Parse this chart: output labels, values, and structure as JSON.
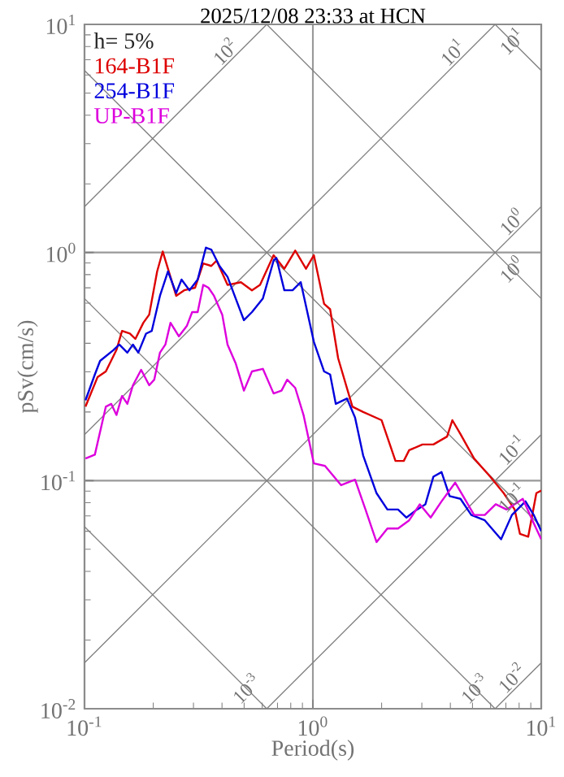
{
  "chart_data": {
    "type": "line",
    "title": "2025/12/08 23:33 at HCN",
    "xlabel": "Period(s)",
    "ylabel": "pSv(cm/s)",
    "log": "xy",
    "grid": true,
    "legend": "top left",
    "xlim": [
      0.1,
      10
    ],
    "ylim": [
      0.01,
      10
    ],
    "xticks": [
      {
        "value": 0.1,
        "label": "10$^{-1}$"
      },
      {
        "value": 1,
        "label": "10$^{0}$"
      },
      {
        "value": 10,
        "label": "10$^{1}$"
      }
    ],
    "yticks": [
      {
        "value": 0.01,
        "label": "10$^{-2}$"
      },
      {
        "value": 0.1,
        "label": "10$^{-1}$"
      },
      {
        "value": 1,
        "label": "10$^{0}$"
      },
      {
        "value": 10,
        "label": "10$^{1}$"
      }
    ],
    "annotations": [
      "h= 5%",
      {
        "text": "10$^{2}$",
        "x": 0.445,
        "y": 7.08
      },
      {
        "text": "10$^{1}$",
        "x": 4.41,
        "y": 7.02
      },
      {
        "text": "10$^{1}$",
        "x": 8,
        "y": 7.85
      },
      {
        "text": "10$^{0}$",
        "x": 8,
        "y": 1.27
      },
      {
        "text": "10$^{0}$",
        "x": 8,
        "y": 0.785
      },
      {
        "text": "10$^{-1}$",
        "x": 8,
        "y": 0.127
      },
      {
        "text": "10$^{-1}$",
        "x": 8,
        "y": 0.0785
      },
      {
        "text": "10$^{-2}$",
        "x": 8,
        "y": 0.0127
      },
      {
        "text": "10$^{-3}$",
        "x": 5.5,
        "y": 0.0114
      },
      {
        "text": "10$^{-3}$",
        "x": 0.55,
        "y": 0.0114
      }
    ],
    "series": [
      {
        "color": "#808080",
        "x": [
          0.1,
          0.628
        ],
        "values": [
          1.59,
          10
        ]
      },
      {
        "color": "#808080",
        "x": [
          0.1,
          6.28
        ],
        "values": [
          0.159,
          10
        ]
      },
      {
        "color": "#808080",
        "x": [
          0.1,
          10
        ],
        "values": [
          0.0159,
          1.59
        ]
      },
      {
        "color": "#808080",
        "x": [
          0.628,
          10
        ],
        "values": [
          0.01,
          0.159
        ]
      },
      {
        "color": "#808080",
        "x": [
          6.28,
          10
        ],
        "values": [
          0.01,
          0.0159
        ]
      },
      {
        "color": "#808080",
        "x": [
          6.28,
          10
        ],
        "values": [
          10,
          6.28
        ]
      },
      {
        "color": "#808080",
        "x": [
          0.628,
          10
        ],
        "values": [
          10,
          0.628
        ]
      },
      {
        "color": "#808080",
        "x": [
          0.1,
          10
        ],
        "values": [
          6.28,
          0.0628
        ]
      },
      {
        "color": "#808080",
        "x": [
          0.1,
          6.28
        ],
        "values": [
          0.628,
          0.01
        ]
      },
      {
        "color": "#808080",
        "x": [
          0.1,
          0.628
        ],
        "values": [
          0.0628,
          0.01
        ]
      },
      {
        "name": "164-B1F",
        "color": "#dd0000",
        "x": [
          0.101,
          0.114,
          0.124,
          0.138,
          0.146,
          0.158,
          0.167,
          0.181,
          0.192,
          0.208,
          0.22,
          0.232,
          0.252,
          0.273,
          0.305,
          0.331,
          0.359,
          0.379,
          0.423,
          0.484,
          0.541,
          0.587,
          0.673,
          0.75,
          0.837,
          0.933,
          1.01,
          1.12,
          1.19,
          1.29,
          1.49,
          1.66,
          2.0,
          2.3,
          2.5,
          2.64,
          3.02,
          3.37,
          3.87,
          4.08,
          4.43,
          5.08,
          5.98,
          6.85,
          7.65,
          8.07,
          8.77,
          9.52,
          10
        ],
        "values": [
          0.211,
          0.284,
          0.301,
          0.374,
          0.453,
          0.441,
          0.418,
          0.492,
          0.534,
          0.826,
          1.01,
          0.849,
          0.646,
          0.683,
          0.701,
          0.896,
          0.873,
          0.921,
          0.721,
          0.741,
          0.683,
          0.721,
          0.973,
          0.849,
          1.02,
          0.849,
          0.973,
          0.595,
          0.564,
          0.344,
          0.211,
          0.2,
          0.184,
          0.122,
          0.122,
          0.136,
          0.144,
          0.144,
          0.156,
          0.184,
          0.16,
          0.125,
          0.104,
          0.0881,
          0.0747,
          0.0584,
          0.0568,
          0.0881,
          0.0904
        ]
      },
      {
        "name": "254-B1F",
        "color": "#0000dd",
        "x": [
          0.101,
          0.111,
          0.117,
          0.134,
          0.142,
          0.154,
          0.163,
          0.172,
          0.186,
          0.197,
          0.214,
          0.232,
          0.252,
          0.266,
          0.288,
          0.313,
          0.34,
          0.359,
          0.39,
          0.423,
          0.459,
          0.499,
          0.541,
          0.604,
          0.673,
          0.692,
          0.75,
          0.815,
          0.885,
          1.01,
          1.12,
          1.19,
          1.26,
          1.41,
          1.53,
          1.66,
          1.9,
          2.12,
          2.36,
          2.57,
          2.86,
          3.11,
          3.37,
          3.66,
          3.97,
          4.43,
          4.94,
          5.66,
          6.67,
          7.44,
          8.53,
          9.27,
          10
        ],
        "values": [
          0.225,
          0.292,
          0.335,
          0.374,
          0.395,
          0.364,
          0.395,
          0.364,
          0.441,
          0.453,
          0.646,
          0.826,
          0.664,
          0.761,
          0.683,
          0.761,
          1.05,
          1.03,
          0.873,
          0.782,
          0.629,
          0.505,
          0.548,
          0.629,
          0.921,
          0.947,
          0.683,
          0.683,
          0.741,
          0.406,
          0.301,
          0.292,
          0.217,
          0.229,
          0.189,
          0.129,
          0.0881,
          0.0747,
          0.0747,
          0.0689,
          0.0747,
          0.0788,
          0.104,
          0.109,
          0.0856,
          0.0832,
          0.0707,
          0.067,
          0.0553,
          0.0707,
          0.0811,
          0.0707,
          0.06
        ]
      },
      {
        "name": "UP-B1F",
        "color": "#dd00dd",
        "x": [
          0.101,
          0.111,
          0.124,
          0.131,
          0.138,
          0.146,
          0.154,
          0.163,
          0.177,
          0.192,
          0.202,
          0.214,
          0.226,
          0.238,
          0.259,
          0.281,
          0.296,
          0.313,
          0.331,
          0.349,
          0.369,
          0.401,
          0.423,
          0.459,
          0.499,
          0.541,
          0.604,
          0.673,
          0.729,
          0.772,
          0.837,
          0.91,
          1.01,
          1.13,
          1.33,
          1.53,
          1.7,
          1.9,
          2.12,
          2.36,
          2.64,
          2.94,
          3.28,
          3.66,
          4.2,
          4.55,
          5.08,
          5.66,
          6.32,
          7.05,
          8.3,
          9.27,
          10
        ],
        "values": [
          0.125,
          0.13,
          0.211,
          0.217,
          0.194,
          0.235,
          0.217,
          0.262,
          0.306,
          0.262,
          0.277,
          0.364,
          0.395,
          0.492,
          0.429,
          0.478,
          0.548,
          0.548,
          0.721,
          0.701,
          0.646,
          0.534,
          0.395,
          0.327,
          0.248,
          0.301,
          0.309,
          0.241,
          0.248,
          0.277,
          0.255,
          0.194,
          0.119,
          0.116,
          0.0955,
          0.101,
          0.0747,
          0.0538,
          0.0617,
          0.0617,
          0.067,
          0.0788,
          0.0689,
          0.0811,
          0.098,
          0.0856,
          0.0707,
          0.0707,
          0.0788,
          0.0747,
          0.0832,
          0.0651,
          0.0553
        ]
      }
    ]
  }
}
